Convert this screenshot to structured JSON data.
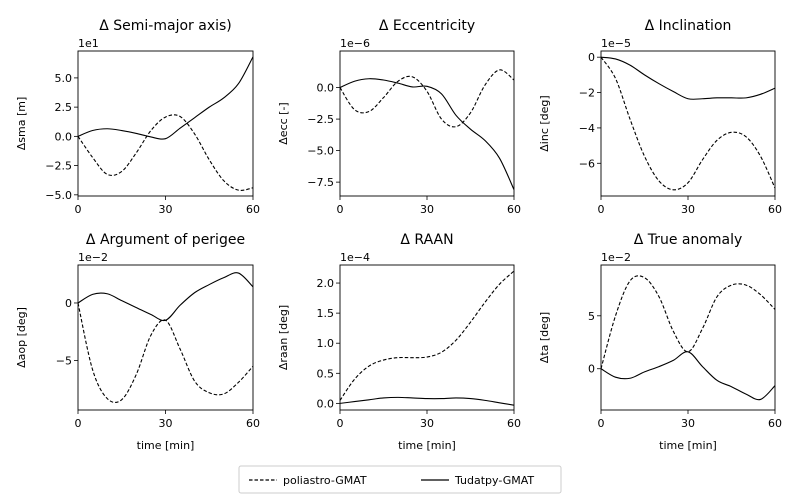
{
  "legend": [
    {
      "label": "poliastro-GMAT",
      "style": "dashed"
    },
    {
      "label": "Tudatpy-GMAT",
      "style": "solid"
    }
  ],
  "chart_data": [
    {
      "type": "line",
      "title": "Δ Semi-major axis)",
      "ylabel": "Δsma [m]",
      "xlabel": "",
      "offset_label": "1e1",
      "xlim": [
        0,
        60
      ],
      "ylim": [
        -5.1,
        7.3
      ],
      "xticks": [
        0,
        30,
        60
      ],
      "xticklabels": [
        "0",
        "30",
        "60"
      ],
      "yticks": [
        -5,
        -2.5,
        0,
        2.5,
        5
      ],
      "yticklabels": [
        "−5.0",
        "−2.5",
        "0.0",
        "2.5",
        "5.0"
      ],
      "x": [
        0,
        5,
        10,
        15,
        20,
        25,
        30,
        35,
        40,
        45,
        50,
        55,
        60
      ],
      "series": [
        {
          "name": "poliastro-GMAT",
          "values": [
            0,
            -1.8,
            -3.25,
            -3.0,
            -1.4,
            0.5,
            1.65,
            1.7,
            0.2,
            -2.0,
            -3.8,
            -4.6,
            -4.4
          ]
        },
        {
          "name": "Tudatpy-GMAT",
          "values": [
            0,
            0.5,
            0.65,
            0.5,
            0.25,
            -0.05,
            -0.2,
            0.7,
            1.6,
            2.5,
            3.3,
            4.5,
            6.8
          ]
        }
      ]
    },
    {
      "type": "line",
      "title": "Δ Eccentricity",
      "ylabel": "Δecc [-]",
      "xlabel": "",
      "offset_label": "1e−6",
      "xlim": [
        0,
        60
      ],
      "ylim": [
        -8.6,
        2.9
      ],
      "xticks": [
        0,
        30,
        60
      ],
      "xticklabels": [
        "0",
        "30",
        "60"
      ],
      "yticks": [
        -7.5,
        -5,
        -2.5,
        0
      ],
      "yticklabels": [
        "−7.5",
        "−5.0",
        "−2.5",
        "0.0"
      ],
      "x": [
        0,
        5,
        10,
        15,
        20,
        25,
        30,
        35,
        40,
        45,
        50,
        55,
        60
      ],
      "series": [
        {
          "name": "poliastro-GMAT",
          "values": [
            0.0,
            -1.75,
            -1.9,
            -0.8,
            0.5,
            0.85,
            -0.3,
            -2.5,
            -3.1,
            -2.0,
            0.2,
            1.4,
            0.6
          ]
        },
        {
          "name": "Tudatpy-GMAT",
          "values": [
            0.0,
            0.5,
            0.7,
            0.6,
            0.35,
            0.05,
            0.1,
            -0.5,
            -2.2,
            -3.3,
            -4.2,
            -5.6,
            -8.1
          ]
        }
      ]
    },
    {
      "type": "line",
      "title": "Δ Inclination",
      "ylabel": "Δinc [deg]",
      "xlabel": "",
      "offset_label": "1e−5",
      "xlim": [
        0,
        60
      ],
      "ylim": [
        -7.85,
        0.35
      ],
      "xticks": [
        0,
        30,
        60
      ],
      "xticklabels": [
        "0",
        "30",
        "60"
      ],
      "yticks": [
        -6,
        -4,
        -2,
        0
      ],
      "yticklabels": [
        "−6",
        "−4",
        "−2",
        "0"
      ],
      "x": [
        0,
        5,
        10,
        15,
        20,
        25,
        30,
        35,
        40,
        45,
        50,
        55,
        60
      ],
      "series": [
        {
          "name": "poliastro-GMAT",
          "values": [
            0,
            -1.2,
            -3.5,
            -5.6,
            -7.0,
            -7.5,
            -7.1,
            -5.8,
            -4.7,
            -4.25,
            -4.5,
            -5.6,
            -7.4
          ]
        },
        {
          "name": "Tudatpy-GMAT",
          "values": [
            0,
            -0.1,
            -0.45,
            -1.0,
            -1.5,
            -1.95,
            -2.35,
            -2.35,
            -2.3,
            -2.3,
            -2.3,
            -2.1,
            -1.75
          ]
        }
      ]
    },
    {
      "type": "line",
      "title": "Δ Argument of perigee",
      "ylabel": "Δaop [deg]",
      "xlabel": "time [min]",
      "offset_label": "1e−2",
      "xlim": [
        0,
        60
      ],
      "ylim": [
        -9.3,
        3.3
      ],
      "xticks": [
        0,
        30,
        60
      ],
      "xticklabels": [
        "0",
        "30",
        "60"
      ],
      "yticks": [
        -5,
        0
      ],
      "yticklabels": [
        "−5",
        "0"
      ],
      "x": [
        0,
        5,
        10,
        15,
        20,
        25,
        30,
        35,
        40,
        45,
        50,
        55,
        60
      ],
      "series": [
        {
          "name": "poliastro-GMAT",
          "values": [
            0,
            -5.8,
            -8.3,
            -8.4,
            -6.2,
            -2.8,
            -1.5,
            -4.0,
            -6.8,
            -7.8,
            -7.9,
            -6.9,
            -5.5
          ]
        },
        {
          "name": "Tudatpy-GMAT",
          "values": [
            0,
            0.75,
            0.8,
            0.2,
            -0.4,
            -1.0,
            -1.5,
            -0.2,
            0.9,
            1.6,
            2.2,
            2.6,
            1.4
          ]
        }
      ]
    },
    {
      "type": "line",
      "title": "Δ RAAN",
      "ylabel": "Δraan [deg]",
      "xlabel": "time [min]",
      "offset_label": "1e−4",
      "xlim": [
        0,
        60
      ],
      "ylim": [
        -0.11,
        2.3
      ],
      "xticks": [
        0,
        30,
        60
      ],
      "xticklabels": [
        "0",
        "30",
        "60"
      ],
      "yticks": [
        0,
        0.5,
        1,
        1.5,
        2
      ],
      "yticklabels": [
        "0.0",
        "0.5",
        "1.0",
        "1.5",
        "2.0"
      ],
      "x": [
        0,
        5,
        10,
        15,
        20,
        25,
        30,
        35,
        40,
        45,
        50,
        55,
        60
      ],
      "series": [
        {
          "name": "poliastro-GMAT",
          "values": [
            0.05,
            0.4,
            0.62,
            0.72,
            0.76,
            0.76,
            0.77,
            0.85,
            1.05,
            1.35,
            1.68,
            1.98,
            2.2
          ]
        },
        {
          "name": "Tudatpy-GMAT",
          "values": [
            0.0,
            0.03,
            0.06,
            0.09,
            0.1,
            0.09,
            0.08,
            0.08,
            0.09,
            0.08,
            0.05,
            0.01,
            -0.03
          ]
        }
      ]
    },
    {
      "type": "line",
      "title": "Δ True anomaly",
      "ylabel": "Δta [deg]",
      "xlabel": "time [min]",
      "offset_label": "1e−2",
      "xlim": [
        0,
        60
      ],
      "ylim": [
        -3.9,
        9.8
      ],
      "xticks": [
        0,
        30,
        60
      ],
      "xticklabels": [
        "0",
        "30",
        "60"
      ],
      "yticks": [
        0,
        5
      ],
      "yticklabels": [
        "0",
        "5"
      ],
      "x": [
        0,
        5,
        10,
        15,
        20,
        25,
        30,
        35,
        40,
        45,
        50,
        55,
        60
      ],
      "series": [
        {
          "name": "poliastro-GMAT",
          "values": [
            0,
            5.0,
            8.3,
            8.6,
            6.8,
            3.5,
            1.6,
            3.8,
            6.8,
            7.9,
            7.9,
            7.0,
            5.6
          ]
        },
        {
          "name": "Tudatpy-GMAT",
          "values": [
            0,
            -0.8,
            -0.9,
            -0.3,
            0.2,
            0.8,
            1.6,
            0.2,
            -1.1,
            -1.7,
            -2.4,
            -2.9,
            -1.6
          ]
        }
      ]
    }
  ]
}
